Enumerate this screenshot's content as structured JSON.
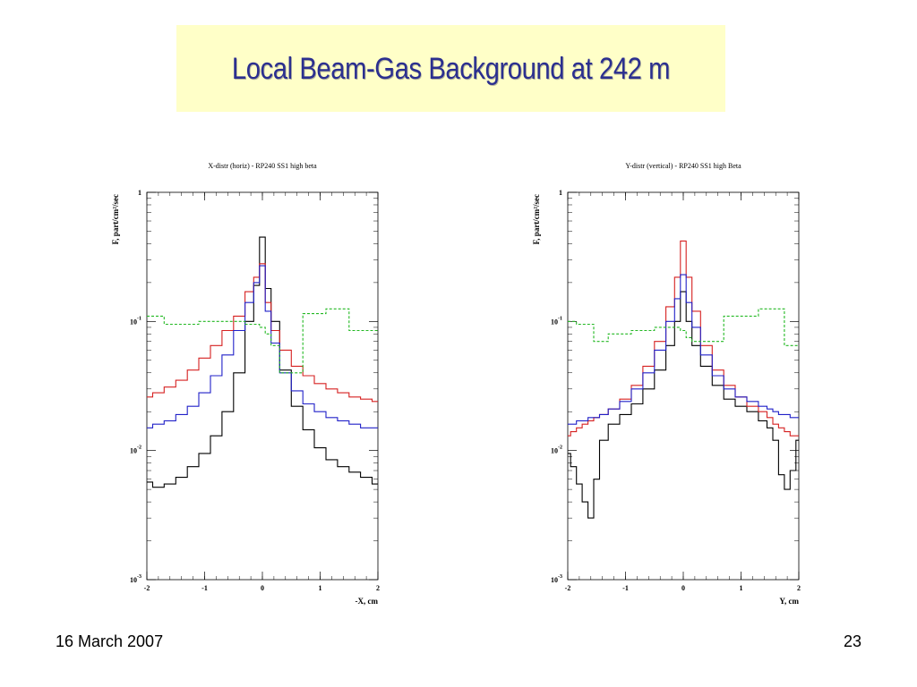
{
  "slide": {
    "title": "Local Beam-Gas Background at 242 m",
    "date": "16 March 2007",
    "page_number": "23"
  },
  "chart_data": [
    {
      "type": "line",
      "step": true,
      "log_y": true,
      "title": "X-distr (horiz) - RP240 SS1 high beta",
      "xlabel": "-X, cm",
      "ylabel": "F, part/cm²/sec",
      "xlim": [
        -2,
        2
      ],
      "ylim": [
        0.001,
        1
      ],
      "x_ticks": [
        "-2",
        "-1",
        "0",
        "1",
        "2"
      ],
      "y_ticks": [
        {
          "value": 1,
          "base": "1",
          "exp": ""
        },
        {
          "value": 0.1,
          "base": "10",
          "exp": "-1"
        },
        {
          "value": 0.01,
          "base": "10",
          "exp": "-2"
        },
        {
          "value": 0.001,
          "base": "10",
          "exp": "-3"
        }
      ],
      "grid": false,
      "x": [
        -2.0,
        -1.8,
        -1.6,
        -1.4,
        -1.2,
        -1.0,
        -0.8,
        -0.6,
        -0.4,
        -0.2,
        -0.1,
        0.0,
        0.1,
        0.2,
        0.4,
        0.6,
        0.8,
        1.0,
        1.2,
        1.4,
        1.6,
        1.8,
        2.0
      ],
      "series": [
        {
          "color": "#000000",
          "dash": false,
          "values": [
            0.0057,
            0.0052,
            0.0055,
            0.0062,
            0.0075,
            0.0095,
            0.013,
            0.02,
            0.04,
            0.1,
            0.19,
            0.45,
            0.18,
            0.1,
            0.042,
            0.022,
            0.0145,
            0.0105,
            0.0085,
            0.0075,
            0.0068,
            0.0062,
            0.0055
          ]
        },
        {
          "color": "#d62020",
          "dash": false,
          "values": [
            0.026,
            0.028,
            0.031,
            0.035,
            0.042,
            0.052,
            0.065,
            0.085,
            0.11,
            0.17,
            0.22,
            0.28,
            0.14,
            0.085,
            0.06,
            0.045,
            0.038,
            0.033,
            0.03,
            0.028,
            0.026,
            0.025,
            0.024
          ]
        },
        {
          "color": "#2020c8",
          "dash": false,
          "values": [
            0.015,
            0.016,
            0.017,
            0.019,
            0.022,
            0.028,
            0.038,
            0.055,
            0.085,
            0.14,
            0.2,
            0.27,
            0.12,
            0.068,
            0.04,
            0.029,
            0.023,
            0.02,
            0.018,
            0.017,
            0.016,
            0.015,
            0.015
          ]
        },
        {
          "color": "#22b822",
          "dash": true,
          "values": [
            0.11,
            0.11,
            0.095,
            0.095,
            0.095,
            0.1,
            0.1,
            0.1,
            0.1,
            0.095,
            0.095,
            0.09,
            0.08,
            0.065,
            0.04,
            0.04,
            0.115,
            0.115,
            0.125,
            0.125,
            0.085,
            0.085,
            0.085
          ]
        }
      ]
    },
    {
      "type": "line",
      "step": true,
      "log_y": true,
      "title": "Y-distr (vertical) - RP240 SS1 high Beta",
      "xlabel": "Y, cm",
      "ylabel": "F, part/cm²/sec",
      "xlim": [
        -2,
        2
      ],
      "ylim": [
        0.001,
        1
      ],
      "x_ticks": [
        "-2",
        "-1",
        "0",
        "1",
        "2"
      ],
      "y_ticks": [
        {
          "value": 1,
          "base": "1",
          "exp": ""
        },
        {
          "value": 0.1,
          "base": "10",
          "exp": "-1"
        },
        {
          "value": 0.01,
          "base": "10",
          "exp": "-2"
        },
        {
          "value": 0.001,
          "base": "10",
          "exp": "-3"
        }
      ],
      "grid": false,
      "x": [
        -2.0,
        -1.9,
        -1.8,
        -1.7,
        -1.6,
        -1.5,
        -1.4,
        -1.2,
        -1.0,
        -0.8,
        -0.6,
        -0.4,
        -0.2,
        -0.1,
        0.0,
        0.1,
        0.2,
        0.4,
        0.6,
        0.8,
        1.0,
        1.2,
        1.4,
        1.5,
        1.6,
        1.7,
        1.8,
        1.9,
        2.0
      ],
      "series": [
        {
          "color": "#000000",
          "dash": false,
          "values": [
            0.0095,
            0.0075,
            0.0055,
            0.004,
            0.003,
            0.006,
            0.012,
            0.016,
            0.019,
            0.023,
            0.03,
            0.042,
            0.065,
            0.1,
            0.17,
            0.1,
            0.065,
            0.045,
            0.032,
            0.025,
            0.022,
            0.02,
            0.017,
            0.015,
            0.012,
            0.0065,
            0.005,
            0.007,
            0.012
          ]
        },
        {
          "color": "#d62020",
          "dash": false,
          "values": [
            0.013,
            0.014,
            0.015,
            0.016,
            0.017,
            0.018,
            0.019,
            0.021,
            0.025,
            0.032,
            0.045,
            0.07,
            0.13,
            0.22,
            0.42,
            0.22,
            0.12,
            0.065,
            0.042,
            0.032,
            0.026,
            0.022,
            0.02,
            0.018,
            0.016,
            0.015,
            0.014,
            0.013,
            0.013
          ]
        },
        {
          "color": "#2020c8",
          "dash": false,
          "values": [
            0.016,
            0.016,
            0.017,
            0.017,
            0.018,
            0.018,
            0.019,
            0.021,
            0.024,
            0.03,
            0.04,
            0.06,
            0.1,
            0.15,
            0.23,
            0.14,
            0.09,
            0.055,
            0.038,
            0.03,
            0.026,
            0.024,
            0.022,
            0.021,
            0.02,
            0.019,
            0.019,
            0.018,
            0.018
          ]
        },
        {
          "color": "#22b822",
          "dash": true,
          "values": [
            0.1,
            0.1,
            0.095,
            0.095,
            0.095,
            0.07,
            0.07,
            0.08,
            0.08,
            0.085,
            0.085,
            0.09,
            0.09,
            0.09,
            0.085,
            0.075,
            0.07,
            0.07,
            0.07,
            0.11,
            0.11,
            0.11,
            0.125,
            0.125,
            0.125,
            0.125,
            0.065,
            0.065,
            0.065
          ]
        }
      ]
    }
  ]
}
